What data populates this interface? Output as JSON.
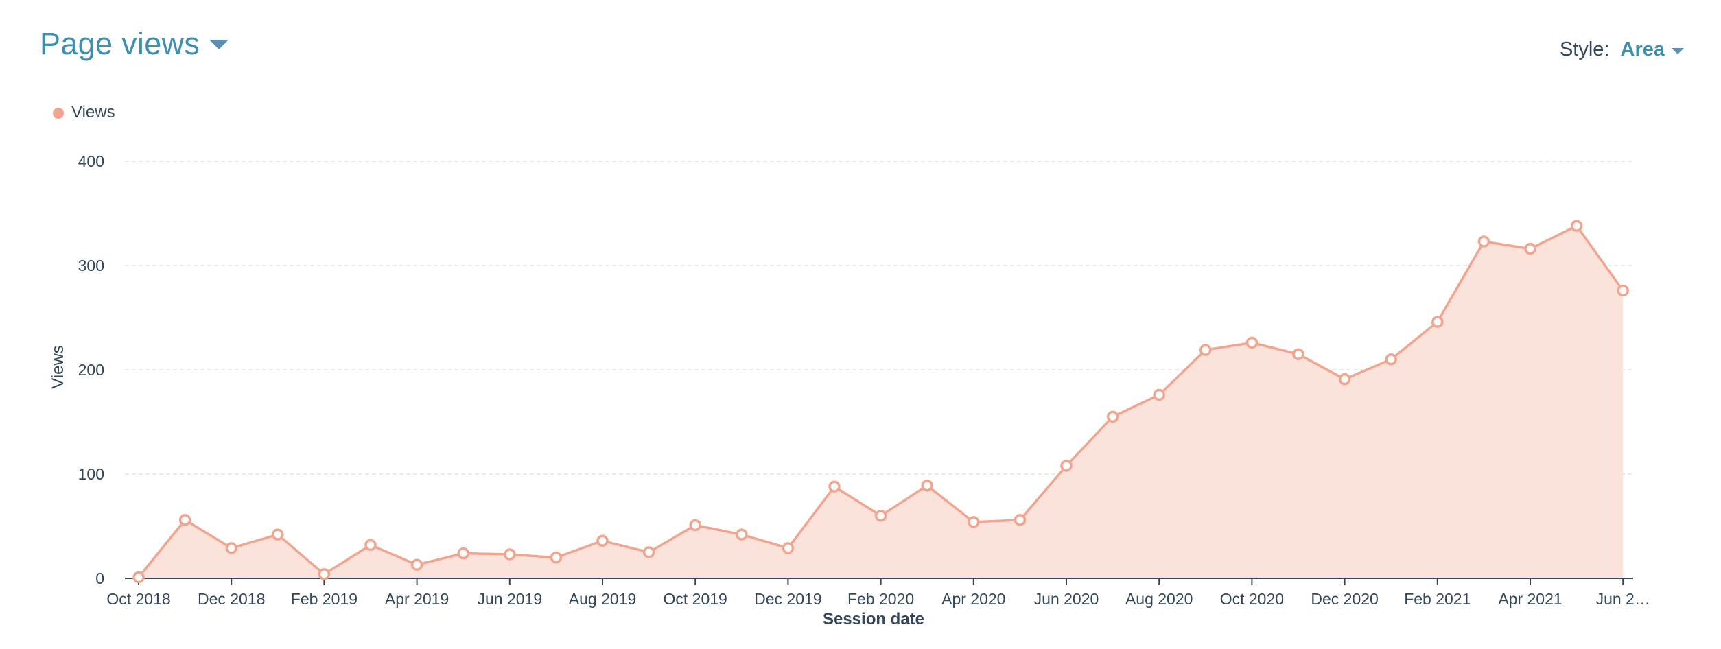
{
  "header": {
    "title": "Page views",
    "style_label": "Style:",
    "style_value": "Area"
  },
  "colors": {
    "title": "#3e8fb0",
    "series_line": "#f2a58e",
    "series_fill": "#fbe3dc",
    "grid": "#dfe3eb",
    "axis": "#33475b"
  },
  "icons": {
    "title_dropdown": "caret-down-icon",
    "style_dropdown": "caret-down-icon",
    "legend_marker": "circle-icon"
  },
  "chart_data": {
    "type": "area",
    "title": "",
    "xlabel": "Session date",
    "ylabel": "Views",
    "ylim": [
      0,
      400
    ],
    "yticks": [
      0,
      100,
      200,
      300,
      400
    ],
    "grid": true,
    "legend_position": "top-left",
    "x": [
      "Oct 2018",
      "Nov 2018",
      "Dec 2018",
      "Jan 2019",
      "Feb 2019",
      "Mar 2019",
      "Apr 2019",
      "May 2019",
      "Jun 2019",
      "Jul 2019",
      "Aug 2019",
      "Sep 2019",
      "Oct 2019",
      "Nov 2019",
      "Dec 2019",
      "Jan 2020",
      "Feb 2020",
      "Mar 2020",
      "Apr 2020",
      "May 2020",
      "Jun 2020",
      "Jul 2020",
      "Aug 2020",
      "Sep 2020",
      "Oct 2020",
      "Nov 2020",
      "Dec 2020",
      "Jan 2021",
      "Feb 2021",
      "Mar 2021",
      "Apr 2021",
      "May 2021",
      "Jun 2021"
    ],
    "tick_labels": [
      "Oct 2018",
      "Dec 2018",
      "Feb 2019",
      "Apr 2019",
      "Jun 2019",
      "Aug 2019",
      "Oct 2019",
      "Dec 2019",
      "Feb 2020",
      "Apr 2020",
      "Jun 2020",
      "Aug 2020",
      "Oct 2020",
      "Dec 2020",
      "Feb 2021",
      "Apr 2021",
      "Jun 2…"
    ],
    "series": [
      {
        "name": "Views",
        "values": [
          1,
          56,
          29,
          42,
          4,
          32,
          13,
          24,
          23,
          20,
          36,
          25,
          51,
          42,
          29,
          88,
          60,
          89,
          54,
          56,
          108,
          155,
          176,
          219,
          226,
          215,
          191,
          210,
          246,
          323,
          316,
          338,
          276
        ]
      }
    ]
  }
}
